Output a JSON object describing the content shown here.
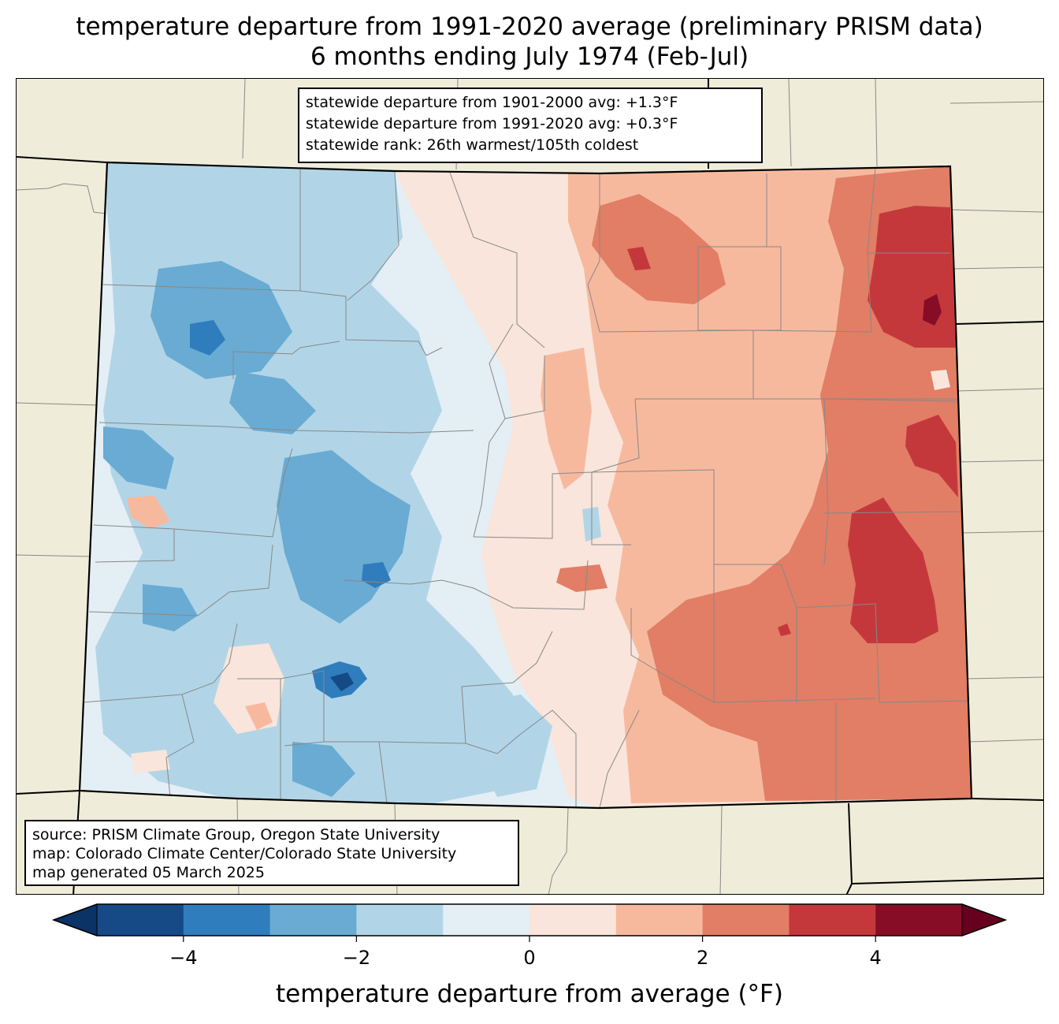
{
  "title": {
    "line1": "temperature departure from 1991-2020 average (preliminary PRISM data)",
    "line2": "6 months ending July 1974 (Feb-Jul)"
  },
  "stats": {
    "line1": "statewide departure from 1901-2000 avg: +1.3°F",
    "line2": "statewide departure from 1991-2020 avg: +0.3°F",
    "line3": "statewide rank: 26th warmest/105th coldest"
  },
  "source": {
    "line1": "source: PRISM Climate Group, Oregon State University",
    "line2": "map: Colorado Climate Center/Colorado State University",
    "line3": "map generated 05 March 2025"
  },
  "colorbar": {
    "label": "temperature departure from average (°F)",
    "min": -5,
    "max": 5,
    "ticks": [
      {
        "value": -4,
        "label": "−4"
      },
      {
        "value": -2,
        "label": "−2"
      },
      {
        "value": 0,
        "label": "0"
      },
      {
        "value": 2,
        "label": "2"
      },
      {
        "value": 4,
        "label": "4"
      }
    ],
    "bins": [
      {
        "from": -5,
        "to": -4,
        "color": "#154a87"
      },
      {
        "from": -4,
        "to": -3,
        "color": "#2f7dbc"
      },
      {
        "from": -3,
        "to": -2,
        "color": "#69abd3"
      },
      {
        "from": -2,
        "to": -1,
        "color": "#b1d5e7"
      },
      {
        "from": -1,
        "to": 0,
        "color": "#e4eef5"
      },
      {
        "from": 0,
        "to": 1,
        "color": "#f9e5db"
      },
      {
        "from": 1,
        "to": 2,
        "color": "#f7b99e"
      },
      {
        "from": 2,
        "to": 3,
        "color": "#e17e65"
      },
      {
        "from": 3,
        "to": 4,
        "color": "#c4383c"
      },
      {
        "from": 4,
        "to": 5,
        "color": "#870c26"
      }
    ],
    "extend_low_color": "#0b3366",
    "extend_high_color": "#67001f"
  },
  "map_colors": {
    "background": "#efedda",
    "state_border": "#000000",
    "county_border": "#888888"
  }
}
